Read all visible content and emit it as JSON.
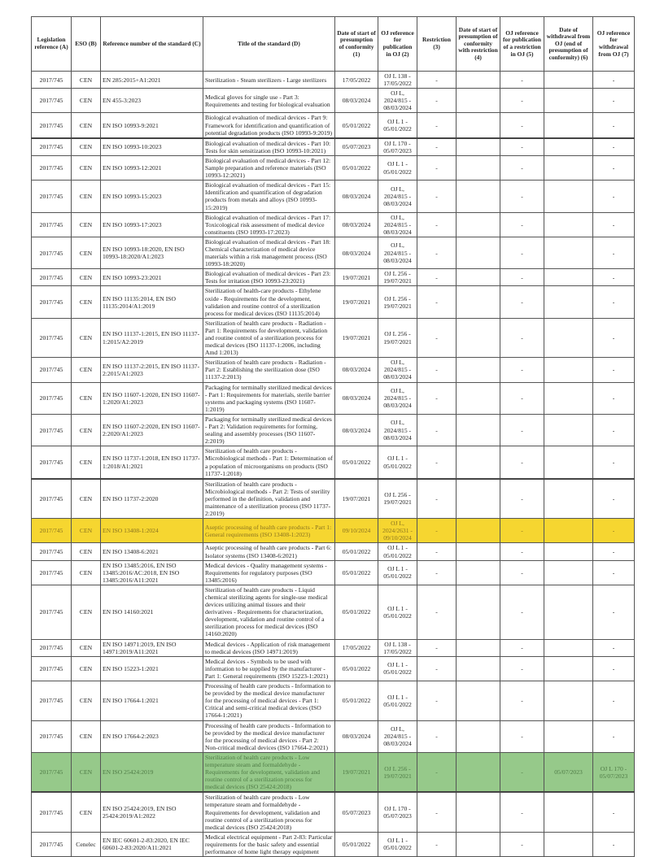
{
  "headers": [
    "Legislation reference (A)",
    "ESO (B)",
    "Reference number of the standard (C)",
    "Title of the standard (D)",
    "Date of start of presumption of conformity (1)",
    "OJ reference for publication in OJ (2)",
    "Restriction (3)",
    "Date of start of presumption of conformity with restriction (4)",
    "OJ reference for publication of a restriction in OJ (5)",
    "Date of withdrawal from OJ (end of presumption of conformity) (6)",
    "OJ reference for withdrawal from OJ (7)"
  ],
  "highlight_colors": {
    "yellow": "#f6d630",
    "green": "#96c98a"
  },
  "rows": [
    {
      "cells": [
        "2017/745",
        "CEN",
        "EN 285:2015+A1:2021",
        "Sterilization - Steam sterilizers - Large sterilizers",
        "17/05/2022",
        "OJ L 138 - 17/05/2022",
        "-",
        "",
        "-",
        "",
        "-"
      ]
    },
    {
      "cells": [
        "2017/745",
        "CEN",
        "EN 455-3:2023",
        "Medical gloves for single use - Part 3: Requirements and testing for biological evaluation",
        "08/03/2024",
        "OJ L, 2024/815 - 08/03/2024",
        "-",
        "",
        "-",
        "",
        "-"
      ]
    },
    {
      "cells": [
        "2017/745",
        "CEN",
        "EN ISO 10993-9:2021",
        "Biological evaluation of medical devices - Part 9: Framework for identification and quantification of potential degradation products (ISO 10993-9:2019)",
        "05/01/2022",
        "OJ L 1 - 05/01/2022",
        "-",
        "",
        "-",
        "",
        "-"
      ]
    },
    {
      "style": "thick",
      "cells": [
        "2017/745",
        "CEN",
        "EN ISO 10993-10:2023",
        "Biological evaluation of medical devices - Part 10: Tests for skin sensitization (ISO 10993-10:2021)",
        "05/07/2023",
        "OJ L 170 - 05/07/2023",
        "-",
        "",
        "-",
        "",
        "-"
      ]
    },
    {
      "cells": [
        "2017/745",
        "CEN",
        "EN ISO 10993-12:2021",
        "Biological evaluation of medical devices - Part 12: Sample preparation and reference materials (ISO 10993-12:2021)",
        "05/01/2022",
        "OJ L 1 - 05/01/2022",
        "-",
        "",
        "-",
        "",
        "-"
      ]
    },
    {
      "cells": [
        "2017/745",
        "CEN",
        "EN ISO 10993-15:2023",
        "Biological evaluation of medical devices - Part 15: Identification and quantification of degradation products from metals and alloys (ISO 10993-15:2019)",
        "08/03/2024",
        "OJ L, 2024/815 - 08/03/2024",
        "-",
        "",
        "-",
        "",
        "-"
      ]
    },
    {
      "cells": [
        "2017/745",
        "CEN",
        "EN ISO 10993-17:2023",
        "Biological evaluation of medical devices - Part 17: Toxicological risk assessment of medical device constituents (ISO 10993-17:2023)",
        "08/03/2024",
        "OJ L, 2024/815 - 08/03/2024",
        "-",
        "",
        "-",
        "",
        "-"
      ]
    },
    {
      "cells": [
        "2017/745",
        "CEN",
        "EN ISO 10993-18:2020, EN ISO 10993-18:2020/A1:2023",
        "Biological evaluation of medical devices - Part 18: Chemical characterization of medical device materials within a risk management process (ISO 10993-18:2020)",
        "08/03/2024",
        "OJ L, 2024/815 - 08/03/2024",
        "-",
        "",
        "-",
        "",
        "-"
      ]
    },
    {
      "cells": [
        "2017/745",
        "CEN",
        "EN ISO 10993-23:2021",
        "Biological evaluation of medical devices - Part 23: Tests for irritation (ISO 10993-23:2021)",
        "19/07/2021",
        "OJ L 256 - 19/07/2021",
        "-",
        "",
        "-",
        "",
        "-"
      ]
    },
    {
      "cells": [
        "2017/745",
        "CEN",
        "EN ISO 11135:2014, EN ISO 11135:2014/A1:2019",
        "Sterilization of health-care products - Ethylene oxide - Requirements for the development, validation and routine control of a sterilization process for medical devices (ISO 11135:2014)",
        "19/07/2021",
        "OJ L 256 - 19/07/2021",
        "-",
        "",
        "-",
        "",
        "-"
      ]
    },
    {
      "cells": [
        "2017/745",
        "CEN",
        "EN ISO 11137-1:2015, EN ISO 11137-1:2015/A2:2019",
        "Sterilization of health care products - Radiation - Part 1: Requirements for development, validation and routine control of a sterilization process for medical devices (ISO 11137-1:2006, including Amd 1:2013)",
        "19/07/2021",
        "OJ L 256 - 19/07/2021",
        "-",
        "",
        "-",
        "",
        "-"
      ]
    },
    {
      "cells": [
        "2017/745",
        "CEN",
        "EN ISO 11137-2:2015, EN ISO 11137-2:2015/A1:2023",
        "Sterilization of health care products - Radiation - Part 2: Establishing the sterilization dose (ISO 11137-2:2013)",
        "08/03/2024",
        "OJ L, 2024/815 - 08/03/2024",
        "-",
        "",
        "-",
        "",
        "-"
      ]
    },
    {
      "cells": [
        "2017/745",
        "CEN",
        "EN ISO 11607-1:2020, EN ISO 11607-1:2020/A1:2023",
        "Packaging for terminally sterilized medical devices - Part 1: Requirements for materials, sterile barrier systems and packaging systems (ISO 11607-1:2019)",
        "08/03/2024",
        "OJ L, 2024/815 - 08/03/2024",
        "-",
        "",
        "-",
        "",
        "-"
      ]
    },
    {
      "cells": [
        "2017/745",
        "CEN",
        "EN ISO 11607-2:2020, EN ISO 11607-2:2020/A1:2023",
        "Packaging for terminally sterilized medical devices - Part 2: Validation requirements for forming, sealing and assembly processes (ISO 11607-2:2019)",
        "08/03/2024",
        "OJ L, 2024/815 - 08/03/2024",
        "-",
        "",
        "-",
        "",
        "-"
      ]
    },
    {
      "cells": [
        "2017/745",
        "CEN",
        "EN ISO 11737-1:2018, EN ISO 11737-1:2018/A1:2021",
        "Sterilization of health care products - Microbiological methods - Part 1: Determination of a population of microorganisms on products (ISO 11737-1:2018)",
        "05/01/2022",
        "OJ L 1 - 05/01/2022",
        "-",
        "",
        "-",
        "",
        "-"
      ]
    },
    {
      "style": "thick",
      "cells": [
        "2017/745",
        "CEN",
        "EN ISO 11737-2:2020",
        "Sterilization of health care products - Microbiological methods - Part 2: Tests of sterility performed in the definition, validation and maintenance of a sterilization process (ISO 11737-2:2019)",
        "19/07/2021",
        "OJ L 256 - 19/07/2021",
        "-",
        "",
        "-",
        "",
        "-"
      ]
    },
    {
      "style": "yellow",
      "cells": [
        "2017/745",
        "CEN",
        "EN ISO 13408-1:2024",
        "Aseptic processing of health care products - Part 1: General requirements (ISO 13408-1:2023)",
        "09/10/2024",
        "OJ L, 2024/2631 - 09/10/2024",
        "-",
        "",
        "-",
        "",
        "-"
      ]
    },
    {
      "cells": [
        "2017/745",
        "CEN",
        "EN ISO 13408-6:2021",
        "Aseptic processing of health care products - Part 6: Isolator systems (ISO 13408-6:2021)",
        "05/01/2022",
        "OJ L 1 - 05/01/2022",
        "-",
        "",
        "-",
        "",
        "-"
      ]
    },
    {
      "cells": [
        "2017/745",
        "CEN",
        "EN ISO 13485:2016, EN ISO 13485:2016/AC:2018, EN ISO 13485:2016/A11:2021",
        "Medical devices - Quality management systems - Requirements for regulatory purposes (ISO 13485:2016)",
        "05/01/2022",
        "OJ L 1 - 05/01/2022",
        "-",
        "",
        "-",
        "",
        "-"
      ]
    },
    {
      "cells": [
        "2017/745",
        "CEN",
        "EN ISO 14160:2021",
        "Sterilization of health care products - Liquid chemical sterilizing agents for single-use medical devices utilizing animal tissues and their derivatives - Requirements for characterization, development, validation and routine control of a sterilization process for medical devices (ISO 14160:2020)",
        "05/01/2022",
        "OJ L 1 - 05/01/2022",
        "-",
        "",
        "-",
        "",
        "-"
      ]
    },
    {
      "cells": [
        "2017/745",
        "CEN",
        "EN ISO 14971:2019, EN ISO 14971:2019/A11:2021",
        "Medical devices - Application of risk management to medical devices (ISO 14971:2019)",
        "17/05/2022",
        "OJ L 138 - 17/05/2022",
        "-",
        "",
        "-",
        "",
        "-"
      ]
    },
    {
      "cells": [
        "2017/745",
        "CEN",
        "EN ISO 15223-1:2021",
        "Medical devices - Symbols to be used with information to be supplied by the manufacturer - Part 1: General requirements (ISO 15223-1:2021)",
        "05/01/2022",
        "OJ L 1 - 05/01/2022",
        "-",
        "",
        "-",
        "",
        "-"
      ]
    },
    {
      "cells": [
        "2017/745",
        "CEN",
        "EN ISO 17664-1:2021",
        "Processing of health care products - Information to be provided by the medical device manufacturer for the processing of medical devices - Part 1: Critical and semi-critical medical devices (ISO 17664-1:2021)",
        "05/01/2022",
        "OJ L 1 - 05/01/2022",
        "-",
        "",
        "-",
        "",
        "-"
      ]
    },
    {
      "cells": [
        "2017/745",
        "CEN",
        "EN ISO 17664-2:2023",
        "Processing of health care products - Information to be provided by the medical device manufacturer for the processing of medical devices - Part 2: Non-critical medical devices (ISO 17664-2:2021)",
        "08/03/2024",
        "OJ L, 2024/815 - 08/03/2024",
        "-",
        "",
        "-",
        "",
        "-"
      ]
    },
    {
      "style": "green",
      "cells": [
        "2017/745",
        "CEN",
        "EN ISO 25424:2019",
        "Sterilization of health care products - Low temperature steam and formaldehyde - Requirements for development, validation and routine control of a sterilization process for medical devices (ISO 25424:2018)",
        "19/07/2021",
        "OJ L 256 - 19/07/2021",
        "-",
        "",
        "-",
        "05/07/2023",
        "OJ L 170 - 05/07/2023"
      ]
    },
    {
      "style": "thick",
      "cells": [
        "2017/745",
        "CEN",
        "EN ISO 25424:2019, EN ISO 25424:2019/A1:2022",
        "Sterilization of health care products - Low temperature steam and formaldehyde - Requirements for development, validation and routine control of a sterilization process for medical devices (ISO 25424:2018)",
        "05/07/2023",
        "OJ L 170 - 05/07/2023",
        "-",
        "",
        "-",
        "",
        "-"
      ]
    },
    {
      "cells": [
        "2017/745",
        "Cenelec",
        "EN IEC 60601-2-83:2020, EN IEC 60601-2-83:2020/A11:2021",
        "Medical electrical equipment - Part 2-83: Particular requirements for the basic safety and essential performance of home light therapy equipment",
        "05/01/2022",
        "OJ L 1 - 05/01/2022",
        "-",
        "",
        "-",
        "",
        "-"
      ]
    }
  ]
}
